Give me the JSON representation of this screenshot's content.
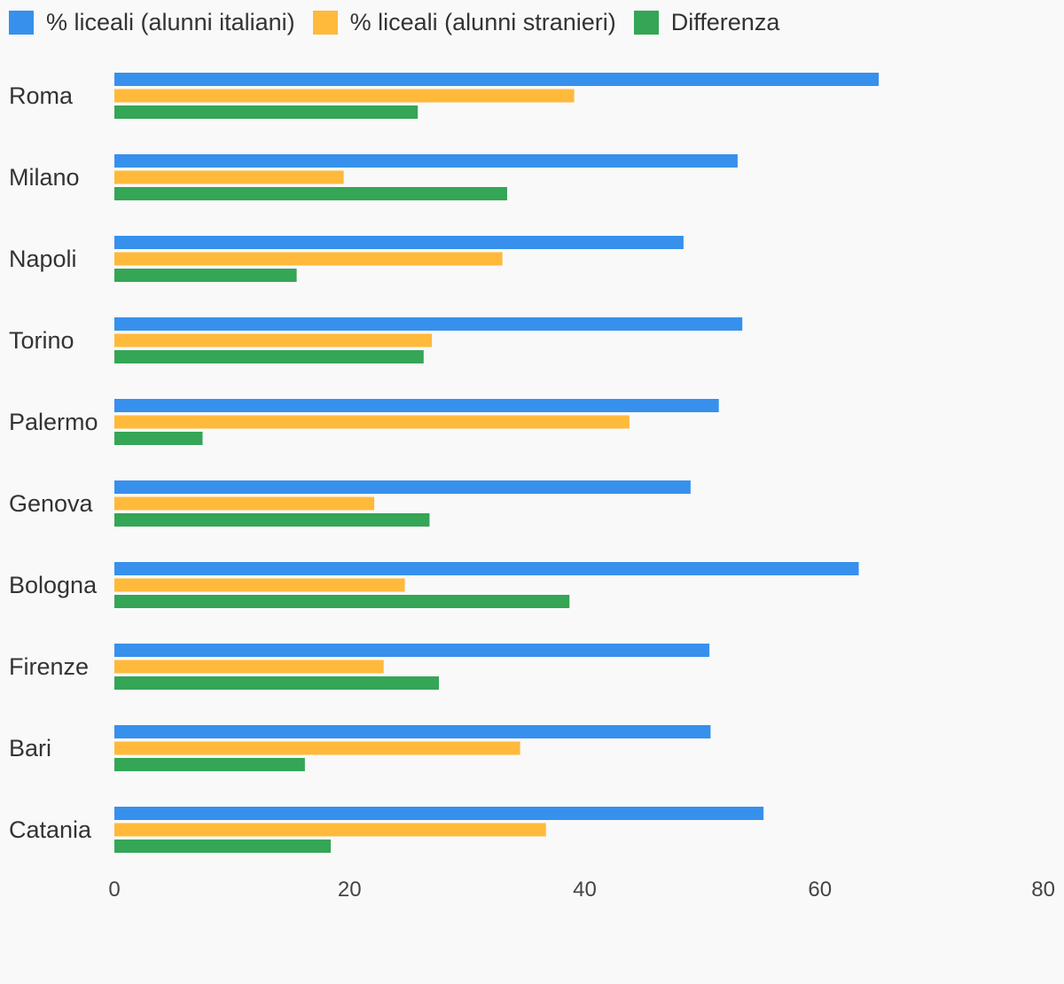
{
  "chart_data": {
    "type": "bar",
    "orientation": "horizontal",
    "categories": [
      "Roma",
      "Milano",
      "Napoli",
      "Torino",
      "Palermo",
      "Genova",
      "Bologna",
      "Firenze",
      "Bari",
      "Catania"
    ],
    "series": [
      {
        "name": "% liceali (alunni italiani)",
        "color": "#3790ec",
        "values": [
          65.0,
          53.0,
          48.4,
          53.4,
          51.4,
          49.0,
          63.3,
          50.6,
          50.7,
          55.2
        ]
      },
      {
        "name": "% liceali (alunni stranieri)",
        "color": "#ffb93b",
        "values": [
          39.1,
          19.5,
          33.0,
          27.0,
          43.8,
          22.1,
          24.7,
          22.9,
          34.5,
          36.7
        ]
      },
      {
        "name": "Differenza",
        "color": "#35a556",
        "values": [
          25.8,
          33.4,
          15.5,
          26.3,
          7.5,
          26.8,
          38.7,
          27.6,
          16.2,
          18.4
        ]
      }
    ],
    "xlim": [
      0,
      80
    ],
    "xticks": [
      0,
      20,
      40,
      60,
      80
    ],
    "legend_position": "top-left",
    "grid": false
  }
}
